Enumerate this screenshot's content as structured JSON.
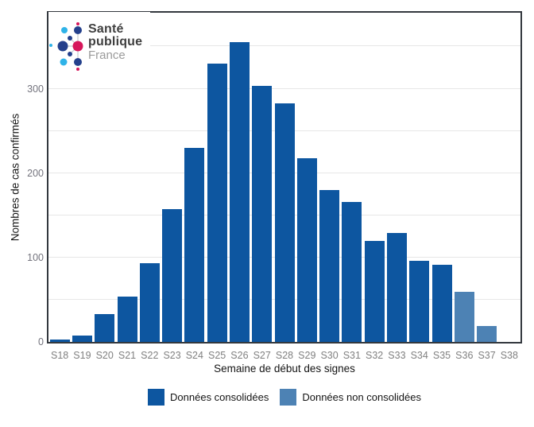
{
  "logo": {
    "line1": "Santé",
    "line2": "publique",
    "line3": "France",
    "colors": {
      "navy": "#24408c",
      "cyan": "#2fb3e8",
      "pink": "#d6175b",
      "link": "#c4c9ce"
    }
  },
  "chart_data": {
    "type": "bar",
    "title": "",
    "xlabel": "Semaine de début des signes",
    "ylabel": "Nombres de cas confirmés",
    "categories": [
      "S18",
      "S19",
      "S20",
      "S21",
      "S22",
      "S23",
      "S24",
      "S25",
      "S26",
      "S27",
      "S28",
      "S29",
      "S30",
      "S31",
      "S32",
      "S33",
      "S34",
      "S35",
      "S36",
      "S37",
      "S38"
    ],
    "values": [
      3,
      8,
      33,
      54,
      93,
      157,
      230,
      330,
      355,
      303,
      283,
      218,
      180,
      166,
      120,
      129,
      96,
      91,
      59,
      19,
      0
    ],
    "non_consolidated_categories": [
      "S36",
      "S37"
    ],
    "ylim": [
      0,
      390
    ],
    "yticks": [
      0,
      100,
      200,
      300
    ],
    "gridline_step": 50,
    "grid": "horizontal",
    "legend_position": "bottom",
    "colors": {
      "consolidated": "#0d56a0",
      "non_consolidated": "#4d82b4"
    },
    "legend": [
      {
        "label": "Données consolidées",
        "key": "consolidated",
        "color": "#0d56a0"
      },
      {
        "label": "Données non consolidées",
        "key": "non_consolidated",
        "color": "#4d82b4"
      }
    ]
  }
}
